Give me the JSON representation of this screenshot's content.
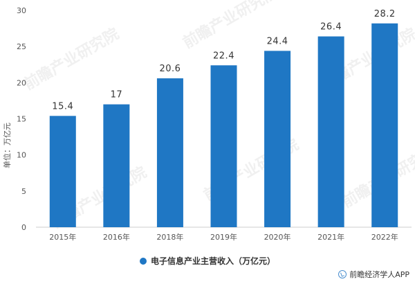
{
  "chart_data": {
    "type": "bar",
    "ylabel": "单位：万亿元",
    "ylim": [
      0,
      30
    ],
    "yticks": [
      0,
      5,
      10,
      15,
      20,
      25,
      30
    ],
    "categories": [
      "2015年",
      "2016年",
      "2018年",
      "2019年",
      "2020年",
      "2021年",
      "2022年"
    ],
    "series": [
      {
        "name": "电子信息产业主营收入（万亿元）",
        "values": [
          15.4,
          17,
          20.6,
          22.4,
          24.4,
          26.4,
          28.2
        ]
      }
    ],
    "data_labels": [
      "15.4",
      "17",
      "20.6",
      "22.4",
      "24.4",
      "26.4",
      "28.2"
    ],
    "bar_color": "#1f77c4",
    "grid": false,
    "legend_position": "bottom"
  },
  "watermark": "前瞻产业研究院",
  "credit": "前瞻经济学人APP"
}
